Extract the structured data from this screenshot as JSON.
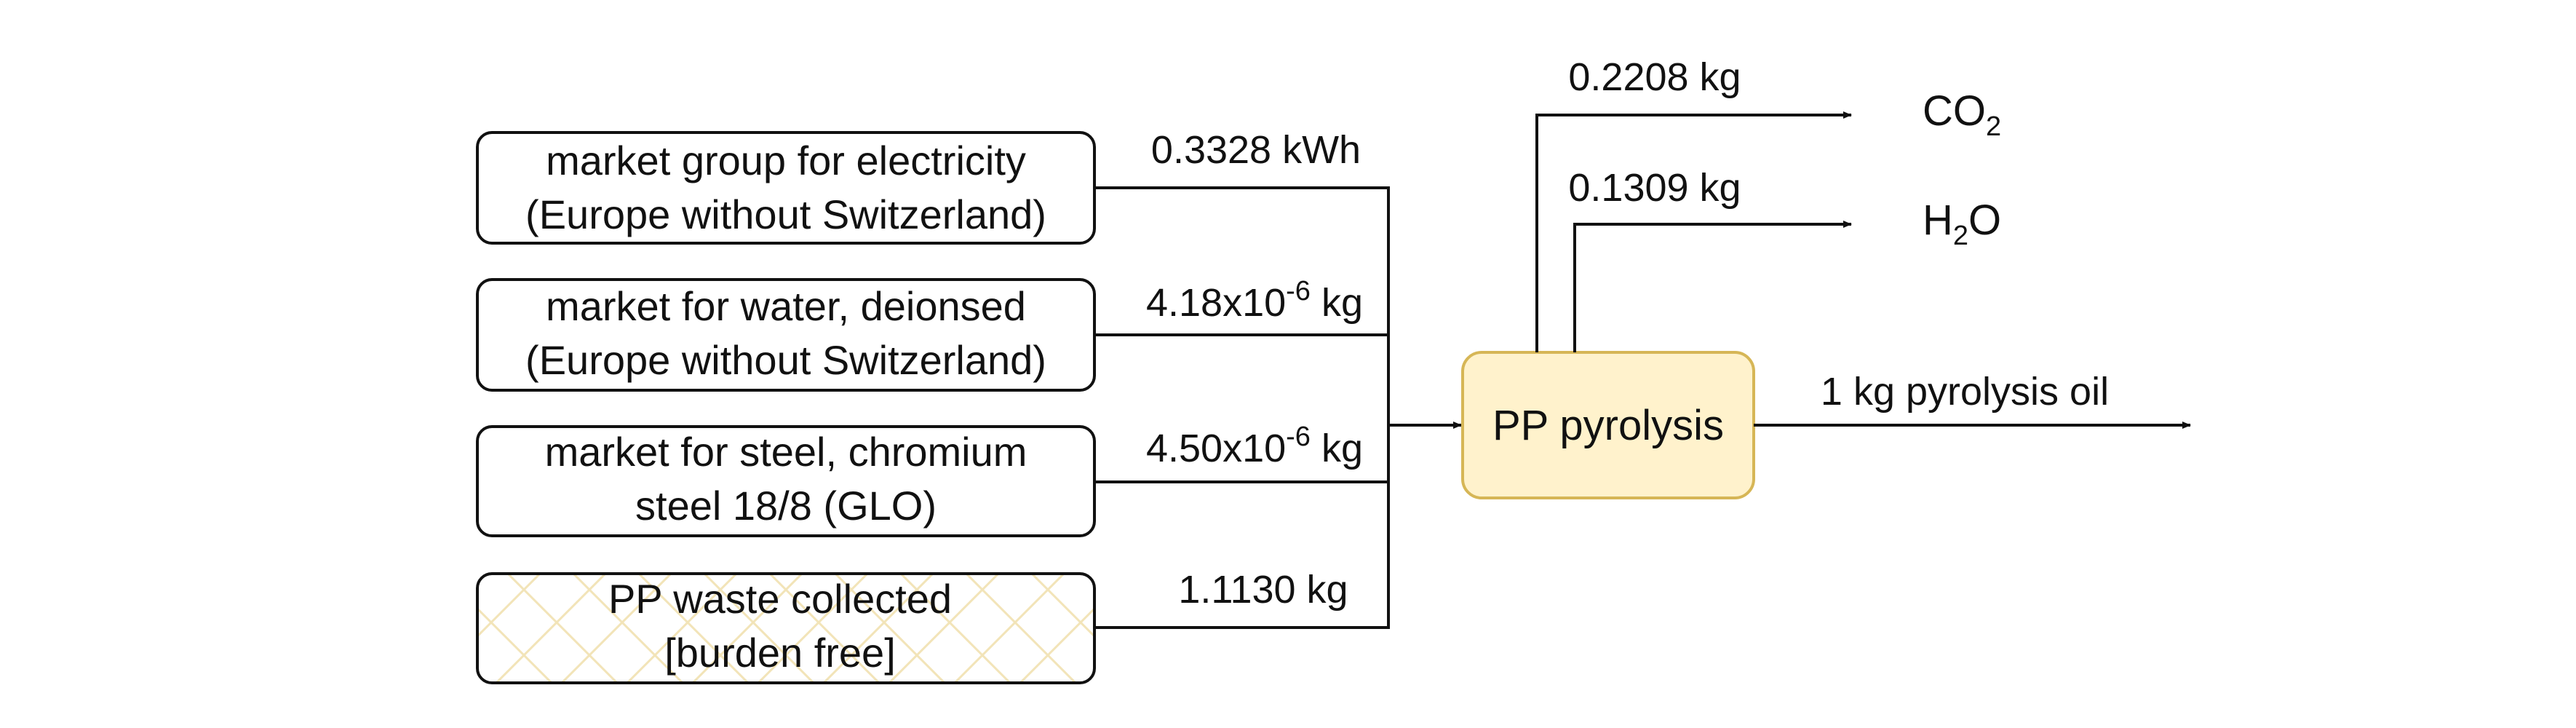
{
  "inputs": [
    {
      "line1": "market group for electricity",
      "line2": "(Europe without Switzerland)",
      "amount": "0.3328 kWh"
    },
    {
      "line1": "market for water, deionsed",
      "line2": "(Europe without Switzerland)",
      "amount_mantissa": "4.18x10",
      "amount_exp": "-6",
      "amount_unit": " kg"
    },
    {
      "line1": "market for steel, chromium",
      "line2": "steel 18/8 (GLO)",
      "amount_mantissa": "4.50x10",
      "amount_exp": "-6",
      "amount_unit": " kg"
    },
    {
      "line1": "PP waste collected",
      "line2": "[burden free]",
      "amount": "1.1130 kg"
    }
  ],
  "process": {
    "label": "PP pyrolysis"
  },
  "emissions": [
    {
      "amount": "0.2208 kg",
      "base": "CO",
      "sub": "2",
      "tail": ""
    },
    {
      "amount": "0.1309 kg",
      "base": "H",
      "sub": "2",
      "tail": "O"
    }
  ],
  "product": {
    "label": "1 kg pyrolysis oil"
  },
  "colors": {
    "stroke": "#111111",
    "process_fill": "#fff2cc",
    "process_stroke": "#d6b656",
    "hatch": "#f2e4b8"
  }
}
